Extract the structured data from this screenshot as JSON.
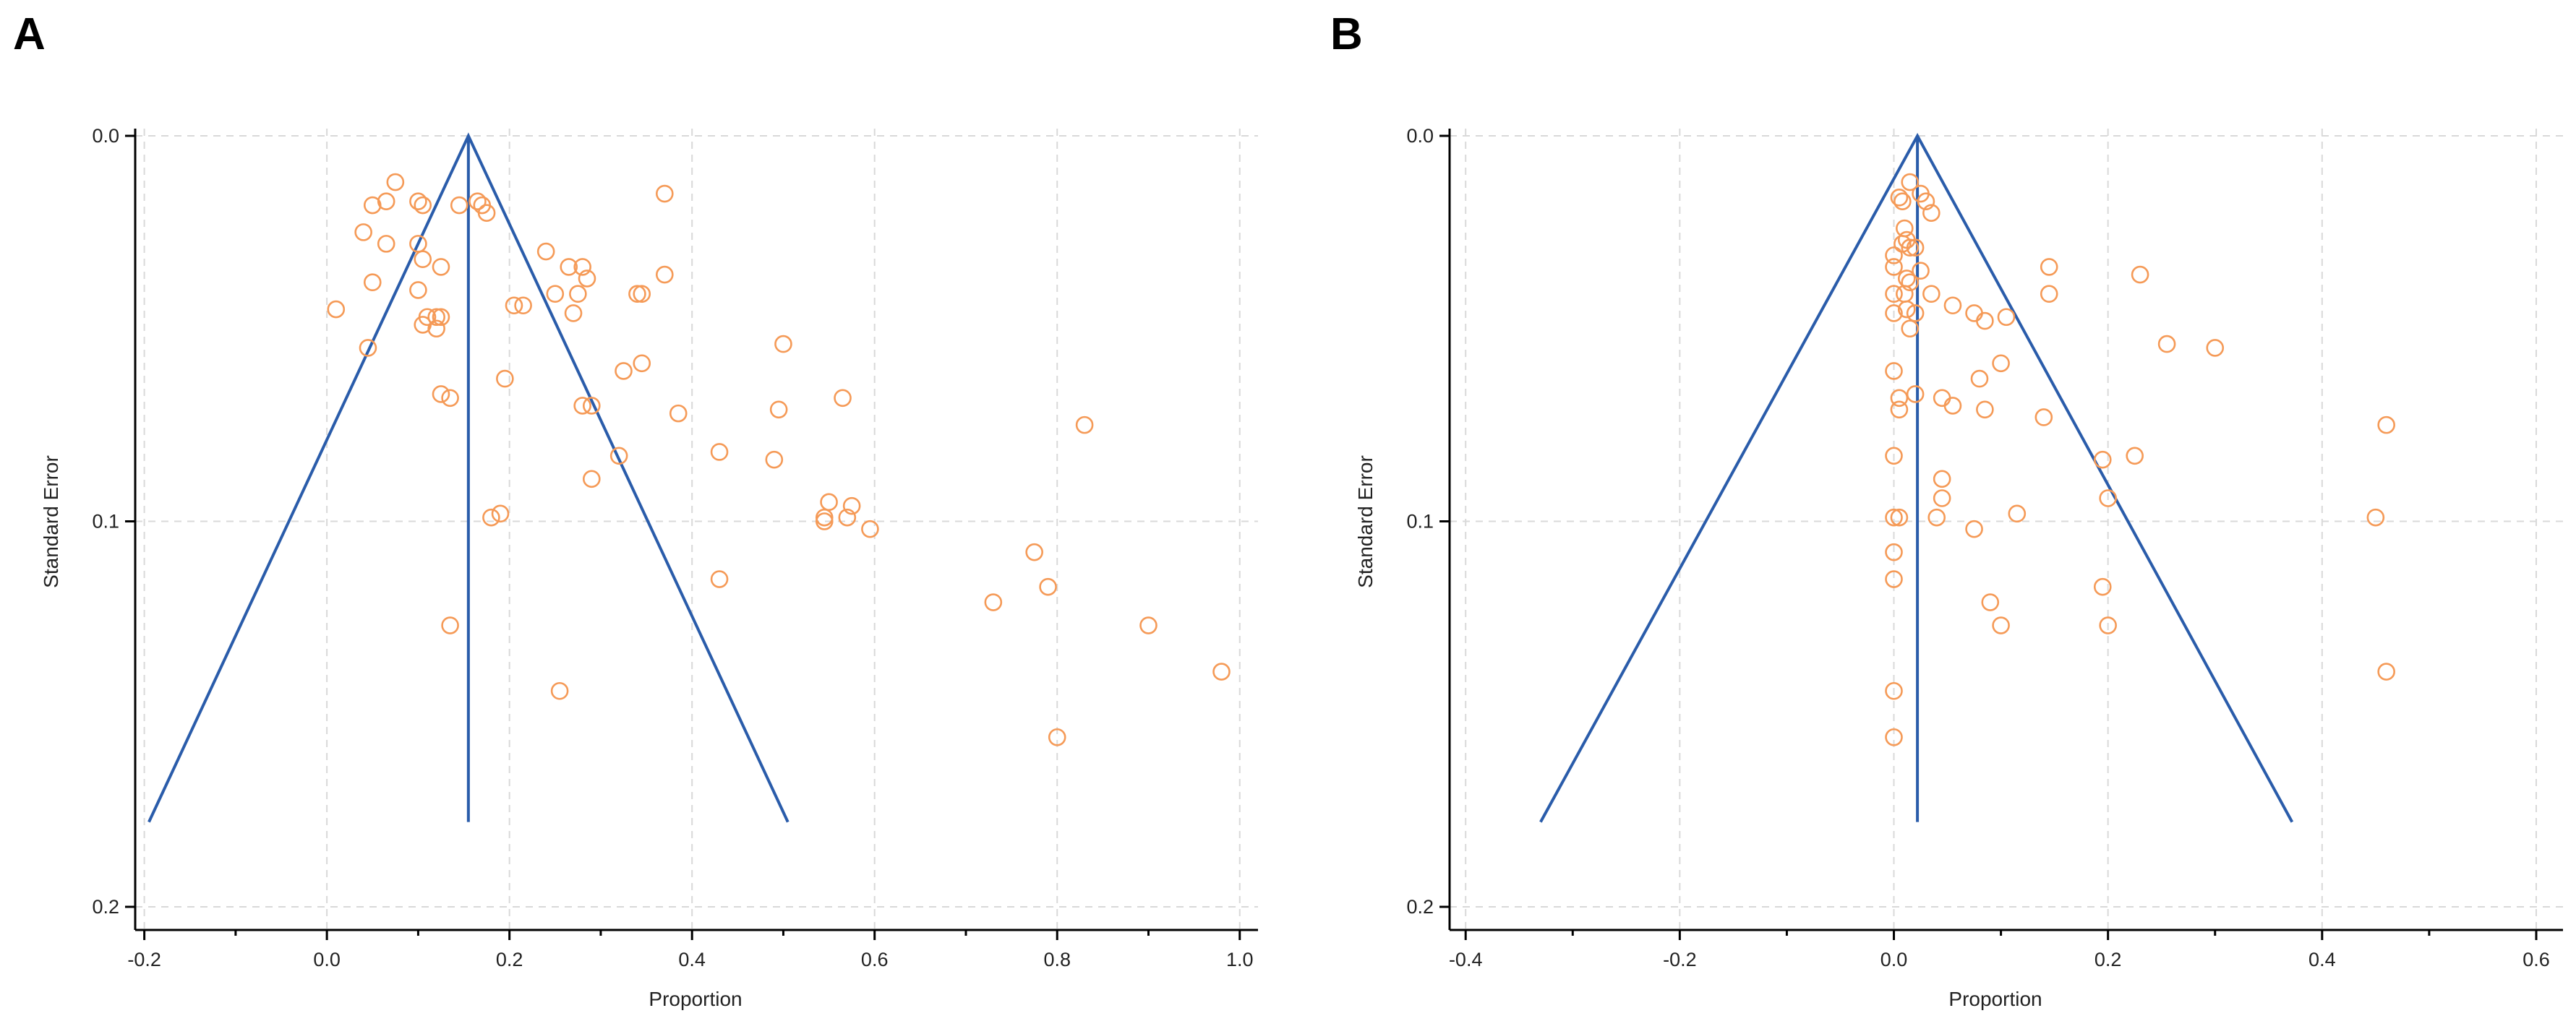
{
  "colors": {
    "funnel": "#2a5caa",
    "points": "#f59a57",
    "grid": "#d9d9d9"
  },
  "chart_data": [
    {
      "type": "scatter",
      "panel": "A",
      "title": "",
      "xlabel": "Proportion",
      "ylabel": "Standard Error",
      "xlim": [
        -0.21,
        1.02
      ],
      "ylim": [
        0.0,
        0.2
      ],
      "y_inverted": true,
      "grid": true,
      "xticks": [
        -0.2,
        0,
        0.2,
        0.4,
        0.6,
        0.8,
        1.0
      ],
      "xtick_labels": [
        "-0.2",
        "0.0",
        "0.2",
        "0.4",
        "0.6",
        "0.8",
        "1.0"
      ],
      "yticks": [
        0.0,
        0.1,
        0.2
      ],
      "ytick_labels": [
        "0.0",
        "0.1",
        "0.2"
      ],
      "funnel": {
        "center": 0.155,
        "apex_se": 0.0,
        "max_se": 0.178,
        "left_x": -0.195,
        "right_x": 0.505
      },
      "points": [
        [
          0.075,
          0.012
        ],
        [
          0.165,
          0.017
        ],
        [
          0.05,
          0.018
        ],
        [
          0.065,
          0.017
        ],
        [
          0.1,
          0.017
        ],
        [
          0.105,
          0.018
        ],
        [
          0.145,
          0.018
        ],
        [
          0.17,
          0.018
        ],
        [
          0.175,
          0.02
        ],
        [
          0.04,
          0.025
        ],
        [
          0.065,
          0.028
        ],
        [
          0.1,
          0.028
        ],
        [
          0.105,
          0.032
        ],
        [
          0.125,
          0.034
        ],
        [
          0.24,
          0.03
        ],
        [
          0.265,
          0.034
        ],
        [
          0.28,
          0.034
        ],
        [
          0.285,
          0.037
        ],
        [
          0.05,
          0.038
        ],
        [
          0.1,
          0.04
        ],
        [
          0.25,
          0.041
        ],
        [
          0.275,
          0.041
        ],
        [
          0.34,
          0.041
        ],
        [
          0.345,
          0.041
        ],
        [
          0.37,
          0.036
        ],
        [
          0.37,
          0.015
        ],
        [
          0.01,
          0.045
        ],
        [
          0.11,
          0.047
        ],
        [
          0.12,
          0.047
        ],
        [
          0.125,
          0.047
        ],
        [
          0.205,
          0.044
        ],
        [
          0.215,
          0.044
        ],
        [
          0.27,
          0.046
        ],
        [
          0.105,
          0.049
        ],
        [
          0.12,
          0.05
        ],
        [
          0.045,
          0.055
        ],
        [
          0.325,
          0.061
        ],
        [
          0.345,
          0.059
        ],
        [
          0.195,
          0.063
        ],
        [
          0.125,
          0.067
        ],
        [
          0.135,
          0.068
        ],
        [
          0.28,
          0.07
        ],
        [
          0.29,
          0.07
        ],
        [
          0.385,
          0.072
        ],
        [
          0.5,
          0.054
        ],
        [
          0.495,
          0.071
        ],
        [
          0.565,
          0.068
        ],
        [
          0.83,
          0.075
        ],
        [
          0.43,
          0.082
        ],
        [
          0.49,
          0.084
        ],
        [
          0.32,
          0.083
        ],
        [
          0.29,
          0.089
        ],
        [
          0.55,
          0.095
        ],
        [
          0.575,
          0.096
        ],
        [
          0.545,
          0.099
        ],
        [
          0.545,
          0.1
        ],
        [
          0.57,
          0.099
        ],
        [
          0.595,
          0.102
        ],
        [
          0.18,
          0.099
        ],
        [
          0.19,
          0.098
        ],
        [
          0.43,
          0.115
        ],
        [
          0.775,
          0.108
        ],
        [
          0.79,
          0.117
        ],
        [
          0.73,
          0.121
        ],
        [
          0.9,
          0.127
        ],
        [
          0.98,
          0.139
        ],
        [
          0.135,
          0.127
        ],
        [
          0.255,
          0.144
        ],
        [
          0.8,
          0.156
        ]
      ]
    },
    {
      "type": "scatter",
      "panel": "B",
      "title": "",
      "xlabel": "Proportion",
      "ylabel": "Standard Error",
      "xlim": [
        -0.415,
        0.625
      ],
      "ylim": [
        0.0,
        0.2
      ],
      "y_inverted": true,
      "grid": true,
      "xticks": [
        -0.4,
        -0.2,
        0,
        0.2,
        0.4,
        0.6
      ],
      "xtick_labels": [
        "-0.4",
        "-0.2",
        "0.0",
        "0.2",
        "0.4",
        "0.6"
      ],
      "yticks": [
        0.0,
        0.1,
        0.2
      ],
      "ytick_labels": [
        "0.0",
        "0.1",
        "0.2"
      ],
      "funnel": {
        "center": 0.022,
        "apex_se": 0.0,
        "max_se": 0.178,
        "left_x": -0.33,
        "right_x": 0.372
      },
      "points": [
        [
          0.015,
          0.012
        ],
        [
          0.025,
          0.015
        ],
        [
          0.005,
          0.016
        ],
        [
          0.008,
          0.017
        ],
        [
          0.03,
          0.017
        ],
        [
          0.035,
          0.02
        ],
        [
          0.01,
          0.024
        ],
        [
          0.012,
          0.027
        ],
        [
          0.008,
          0.028
        ],
        [
          0.015,
          0.029
        ],
        [
          0.02,
          0.029
        ],
        [
          0.0,
          0.031
        ],
        [
          0.0,
          0.034
        ],
        [
          0.025,
          0.035
        ],
        [
          0.012,
          0.037
        ],
        [
          0.015,
          0.038
        ],
        [
          0.01,
          0.041
        ],
        [
          0.0,
          0.041
        ],
        [
          0.035,
          0.041
        ],
        [
          0.0,
          0.046
        ],
        [
          0.012,
          0.045
        ],
        [
          0.02,
          0.046
        ],
        [
          0.055,
          0.044
        ],
        [
          0.075,
          0.046
        ],
        [
          0.085,
          0.048
        ],
        [
          0.105,
          0.047
        ],
        [
          0.015,
          0.05
        ],
        [
          0.145,
          0.034
        ],
        [
          0.145,
          0.041
        ],
        [
          0.23,
          0.036
        ],
        [
          0.255,
          0.054
        ],
        [
          0.3,
          0.055
        ],
        [
          0.1,
          0.059
        ],
        [
          0.0,
          0.061
        ],
        [
          0.08,
          0.063
        ],
        [
          0.02,
          0.067
        ],
        [
          0.005,
          0.068
        ],
        [
          0.045,
          0.068
        ],
        [
          0.055,
          0.07
        ],
        [
          0.005,
          0.071
        ],
        [
          0.085,
          0.071
        ],
        [
          0.14,
          0.073
        ],
        [
          0.0,
          0.083
        ],
        [
          0.195,
          0.084
        ],
        [
          0.225,
          0.083
        ],
        [
          0.045,
          0.089
        ],
        [
          0.045,
          0.094
        ],
        [
          0.2,
          0.094
        ],
        [
          0.0,
          0.099
        ],
        [
          0.005,
          0.099
        ],
        [
          0.04,
          0.099
        ],
        [
          0.115,
          0.098
        ],
        [
          0.075,
          0.102
        ],
        [
          0.45,
          0.099
        ],
        [
          0.46,
          0.075
        ],
        [
          0.0,
          0.108
        ],
        [
          0.0,
          0.115
        ],
        [
          0.195,
          0.117
        ],
        [
          0.09,
          0.121
        ],
        [
          0.1,
          0.127
        ],
        [
          0.2,
          0.127
        ],
        [
          0.46,
          0.139
        ],
        [
          0.0,
          0.144
        ],
        [
          0.0,
          0.156
        ]
      ]
    }
  ],
  "panels": [
    {
      "letter": "A",
      "xlabel": "Proportion",
      "ylabel": "Standard Error"
    },
    {
      "letter": "B",
      "xlabel": "Proportion",
      "ylabel": "Standard Error"
    }
  ]
}
